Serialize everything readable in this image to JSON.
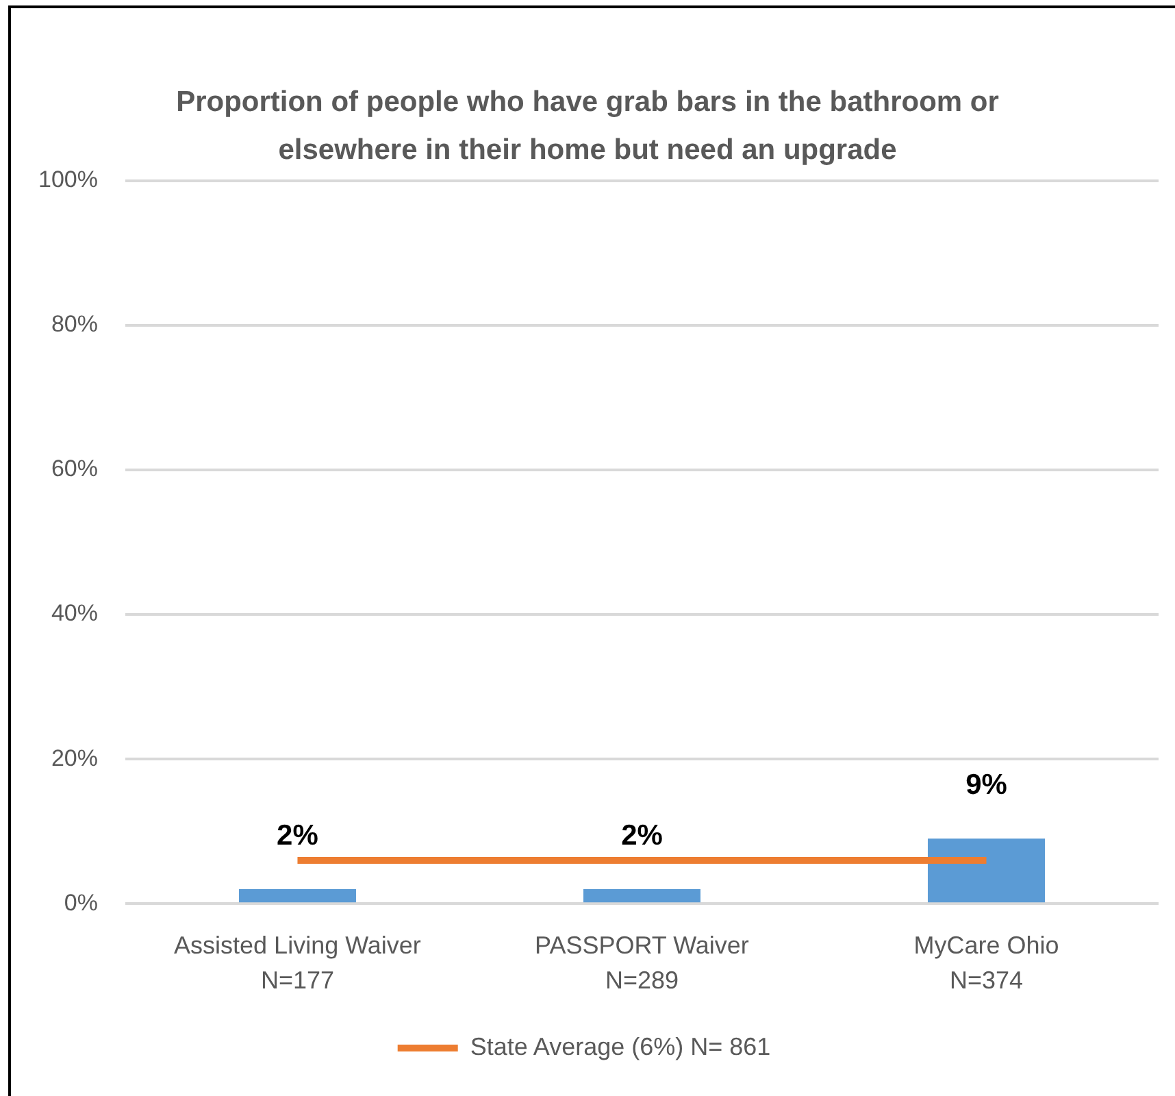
{
  "chart_data": {
    "type": "bar",
    "title": "Proportion of people who have grab bars in the bathroom or elsewhere in their home but need an upgrade",
    "categories": [
      "Assisted Living Waiver\nN=177",
      "PASSPORT Waiver\nN=289",
      "MyCare Ohio\nN=374"
    ],
    "series": [
      {
        "color": "#5b9bd5",
        "values": [
          2,
          2,
          9
        ],
        "value_labels": [
          "2%",
          "2%",
          "9%"
        ]
      },
      {
        "type": "line",
        "name": "State Average (6%) N= 861",
        "color": "#ed7d31",
        "values": [
          6,
          6,
          6
        ],
        "marker": "none"
      }
    ],
    "ylim": [
      0,
      100
    ],
    "yticks": [
      {
        "value": 0,
        "label": "0%"
      },
      {
        "value": 20,
        "label": "20%"
      },
      {
        "value": 40,
        "label": "40%"
      },
      {
        "value": 60,
        "label": "60%"
      },
      {
        "value": 80,
        "label": "80%"
      },
      {
        "value": 100,
        "label": "100%"
      }
    ],
    "grid": "y",
    "legend": "bottom"
  }
}
